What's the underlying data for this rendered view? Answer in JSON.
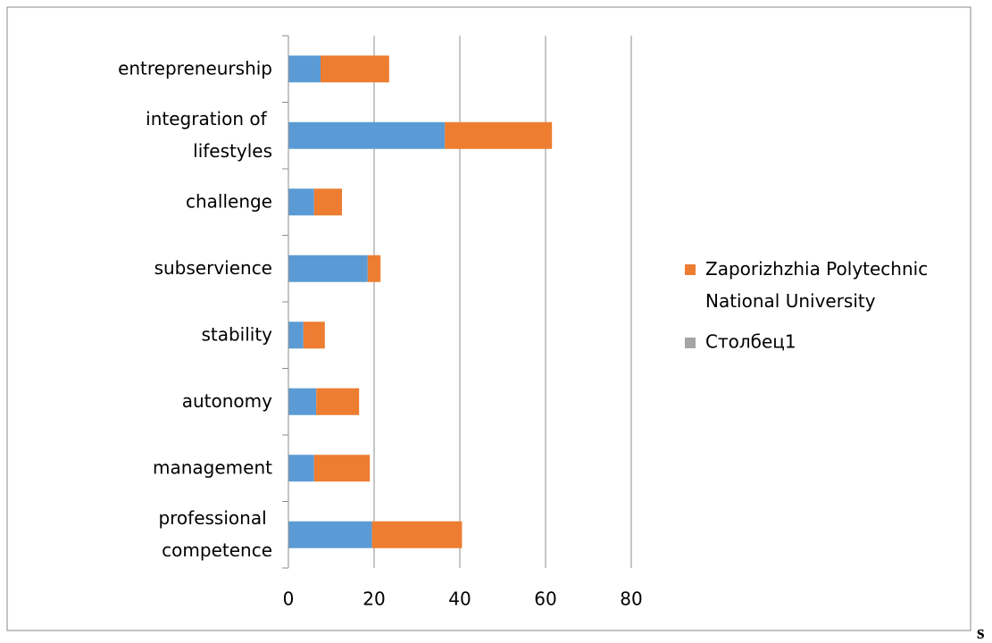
{
  "chart_data": {
    "type": "stacked-bar-horizontal",
    "categories": [
      "entrepreneurship",
      "integration of lifestyles",
      "challenge",
      "subservience",
      "stability",
      "autonomy",
      "management",
      "professional competence"
    ],
    "series": [
      {
        "color": "#5b9bd5",
        "values": [
          7.5,
          36.5,
          6,
          18.5,
          3.5,
          6.5,
          6,
          19.5
        ]
      },
      {
        "name": "Zaporizhzhia Polytechnic National University",
        "color": "#ed7d31",
        "values": [
          16,
          25,
          6.5,
          3,
          5,
          10,
          13,
          21
        ]
      },
      {
        "name": "Столбец1",
        "color": "#a5a5a5",
        "values": [
          null,
          null,
          null,
          null,
          null,
          null,
          null,
          null
        ]
      }
    ],
    "xlim": [
      0,
      80
    ],
    "xticks": [
      0,
      20,
      40,
      60,
      80
    ],
    "grid": true,
    "footnote": "s"
  }
}
